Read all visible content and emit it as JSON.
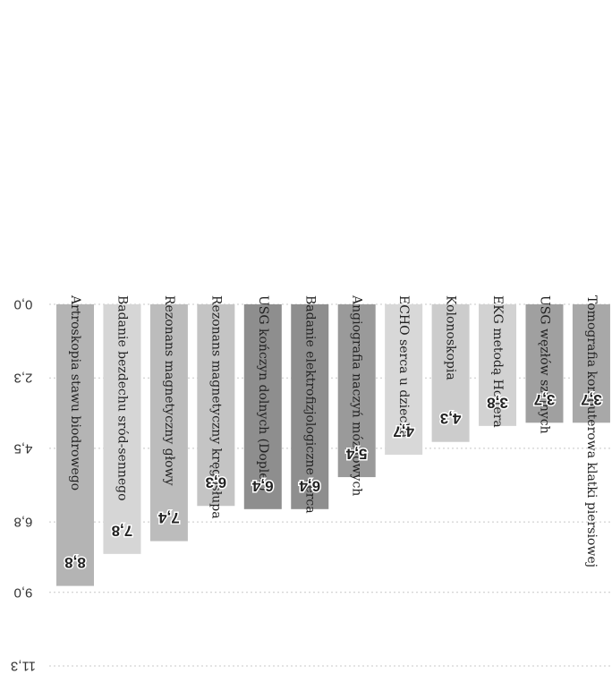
{
  "chart_data": {
    "type": "bar",
    "orientation": "vertical-down",
    "mirrored": true,
    "title": "",
    "xlabel": "",
    "ylabel": "",
    "grid": true,
    "ylim": [
      0,
      11.3
    ],
    "yticks": [
      0,
      2.3,
      4.5,
      6.8,
      9.0,
      11.3
    ],
    "ytick_labels": [
      "0,0",
      "2,3",
      "4,5",
      "6,8",
      "9,0",
      "11,3"
    ],
    "categories": [
      "Artroskopia stawu biodrowego",
      "Badanie bezdechu sród-sennego",
      "Rezonans magnetyczny głowy",
      "Rezonans magnetyczny kręgosłupa",
      "USG kończyn dolnych (Dopler)",
      "Badanie elektrofizjologiczne serca",
      "Angiografia naczyń mózgowych",
      "ECHO serca u dziecka",
      "Kolonoskopia",
      "EKG metodą Holtera",
      "USG węzłów szyjnych",
      "Tomografia komputerowa klatki piersiowej"
    ],
    "values": [
      8.8,
      7.8,
      7.4,
      6.3,
      6.4,
      6.4,
      5.4,
      4.7,
      4.3,
      3.8,
      3.7,
      3.7
    ],
    "value_labels": [
      "8,8",
      "7,8",
      "7,4",
      "6,3",
      "6,4",
      "6,4",
      "5,4",
      "4,7",
      "4,3",
      "3,8",
      "3,7",
      "3,7"
    ],
    "bar_colors": [
      "#b4b4b4",
      "#d6d6d6",
      "#bcbcbc",
      "#c4c4c4",
      "#8e8e8e",
      "#8e8e8e",
      "#9a9a9a",
      "#d8d8d8",
      "#cccccc",
      "#d2d2d2",
      "#a0a0a0",
      "#a8a8a8"
    ]
  }
}
